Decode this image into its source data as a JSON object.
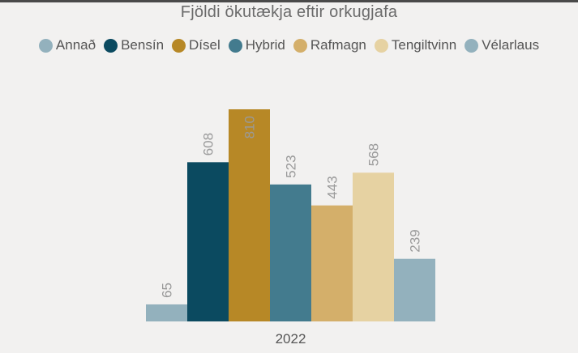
{
  "chart_data": {
    "type": "bar",
    "title": "Fjöldi ökutækja eftir orkugjafa",
    "categories": [
      "2022"
    ],
    "series": [
      {
        "name": "Annað",
        "values": [
          65
        ],
        "color": "#93b1bd"
      },
      {
        "name": "Bensín",
        "values": [
          608
        ],
        "color": "#0b4a60"
      },
      {
        "name": "Dísel",
        "values": [
          810
        ],
        "color": "#b78826"
      },
      {
        "name": "Hybrid",
        "values": [
          523
        ],
        "color": "#437b8e"
      },
      {
        "name": "Rafmagn",
        "values": [
          443
        ],
        "color": "#d4af6a"
      },
      {
        "name": "Tengiltvinn",
        "values": [
          568
        ],
        "color": "#e6d2a2"
      },
      {
        "name": "Vélarlaus",
        "values": [
          239
        ],
        "color": "#93b1bd"
      }
    ],
    "ylim": [
      0,
      810
    ],
    "grid": false,
    "legend": "top",
    "data_labels": true
  }
}
